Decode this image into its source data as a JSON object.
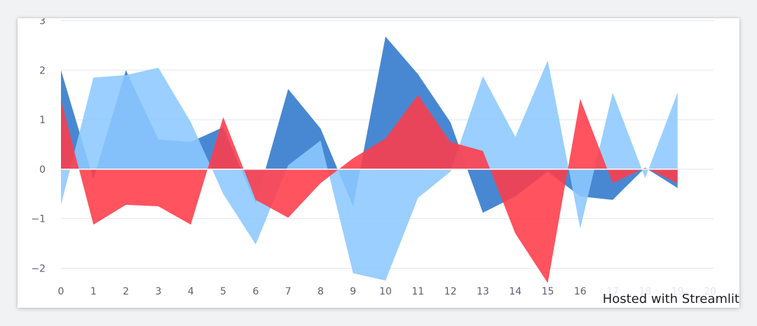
{
  "chart_data": {
    "type": "area",
    "x": [
      0,
      1,
      2,
      3,
      4,
      5,
      6,
      7,
      8,
      9,
      10,
      11,
      12,
      13,
      14,
      15,
      16,
      17,
      18,
      19
    ],
    "x_ticks": [
      0,
      1,
      2,
      3,
      4,
      5,
      6,
      7,
      8,
      9,
      10,
      11,
      12,
      13,
      14,
      15,
      16,
      17,
      18,
      19,
      20
    ],
    "y_ticks": [
      3,
      2,
      1,
      0,
      -1,
      -2
    ],
    "y_tick_labels": [
      "3",
      "2",
      "1",
      "0",
      "−1",
      "−2"
    ],
    "xlim": [
      0,
      20
    ],
    "ylim": [
      -2.8,
      3.05
    ],
    "grid": true,
    "stacked": false,
    "series": [
      {
        "color": "#2f78cc",
        "values": [
          2.0,
          -0.2,
          2.0,
          0.6,
          0.55,
          0.85,
          -0.7,
          1.62,
          0.82,
          -0.75,
          2.68,
          1.92,
          0.95,
          -0.88,
          -0.55,
          -0.05,
          -0.55,
          -0.62,
          0.03,
          -0.38
        ]
      },
      {
        "color": "#8cc8ff",
        "values": [
          -0.72,
          1.85,
          1.9,
          2.05,
          0.95,
          -0.5,
          -1.52,
          0.08,
          0.58,
          -2.1,
          -2.25,
          -0.58,
          -0.05,
          1.88,
          0.65,
          2.2,
          -1.2,
          1.55,
          -0.18,
          1.55
        ]
      },
      {
        "color": "#ff3b49",
        "values": [
          1.4,
          -1.12,
          -0.72,
          -0.75,
          -1.12,
          1.05,
          -0.62,
          -0.98,
          -0.28,
          0.22,
          0.62,
          1.5,
          0.55,
          0.37,
          -1.3,
          -2.3,
          1.42,
          -0.28,
          0.03,
          -0.28
        ]
      }
    ]
  },
  "watermark": "Hosted with Streamlit"
}
